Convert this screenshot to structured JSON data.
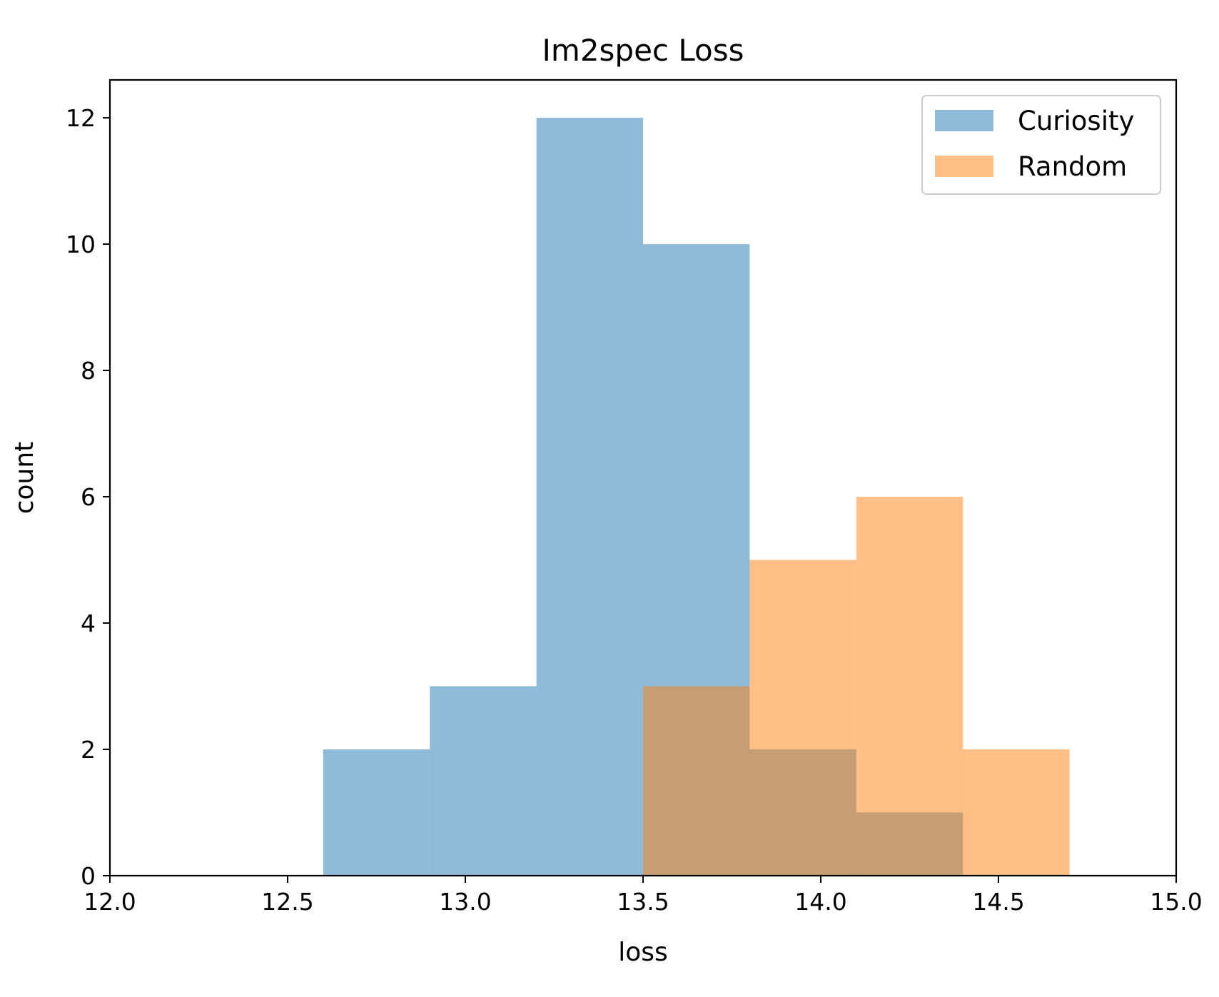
{
  "chart_data": {
    "type": "bar",
    "subtype": "overlapping-histogram",
    "title": "Im2spec Loss",
    "xlabel": "loss",
    "ylabel": "count",
    "xlim": [
      12.0,
      15.0
    ],
    "ylim": [
      0,
      12.6
    ],
    "xticks": [
      "12.0",
      "12.5",
      "13.0",
      "13.5",
      "14.0",
      "14.5",
      "15.0"
    ],
    "yticks": [
      "0",
      "2",
      "4",
      "6",
      "8",
      "10",
      "12"
    ],
    "grid": false,
    "legend_position": "top-right",
    "series": [
      {
        "name": "Curiosity",
        "color": "#1f77b4",
        "opacity": 0.5,
        "bins": [
          12.6,
          12.9,
          13.2,
          13.5,
          13.8,
          14.1,
          14.4
        ],
        "values": [
          2,
          3,
          12,
          10,
          2,
          1
        ]
      },
      {
        "name": "Random",
        "color": "#ff7f0e",
        "opacity": 0.5,
        "bins": [
          13.5,
          13.8,
          14.1,
          14.4,
          14.7
        ],
        "values": [
          3,
          5,
          6,
          2
        ]
      }
    ]
  }
}
